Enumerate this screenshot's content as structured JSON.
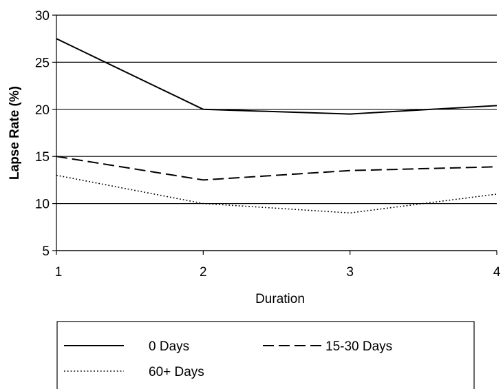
{
  "chart_data": {
    "type": "line",
    "title": "",
    "xlabel": "Duration",
    "ylabel": "Lapse Rate (%)",
    "x": [
      1,
      2,
      3,
      4
    ],
    "x_ticks": [
      "1",
      "2",
      "3",
      "4"
    ],
    "y_ticks": [
      "5",
      "10",
      "15",
      "20",
      "25",
      "30"
    ],
    "xlim": [
      1,
      4
    ],
    "ylim": [
      5,
      30
    ],
    "grid": "horizontal",
    "legend_position": "bottom",
    "series": [
      {
        "name": "0 Days",
        "values": [
          27.5,
          20,
          19.5,
          20.4
        ],
        "style": "solid",
        "color": "#000000"
      },
      {
        "name": "15-30 Days",
        "values": [
          15,
          12.5,
          13.5,
          13.9
        ],
        "style": "dashed",
        "color": "#000000"
      },
      {
        "name": "60+ Days",
        "values": [
          13,
          10,
          9,
          11
        ],
        "style": "dotted",
        "color": "#000000"
      }
    ]
  }
}
